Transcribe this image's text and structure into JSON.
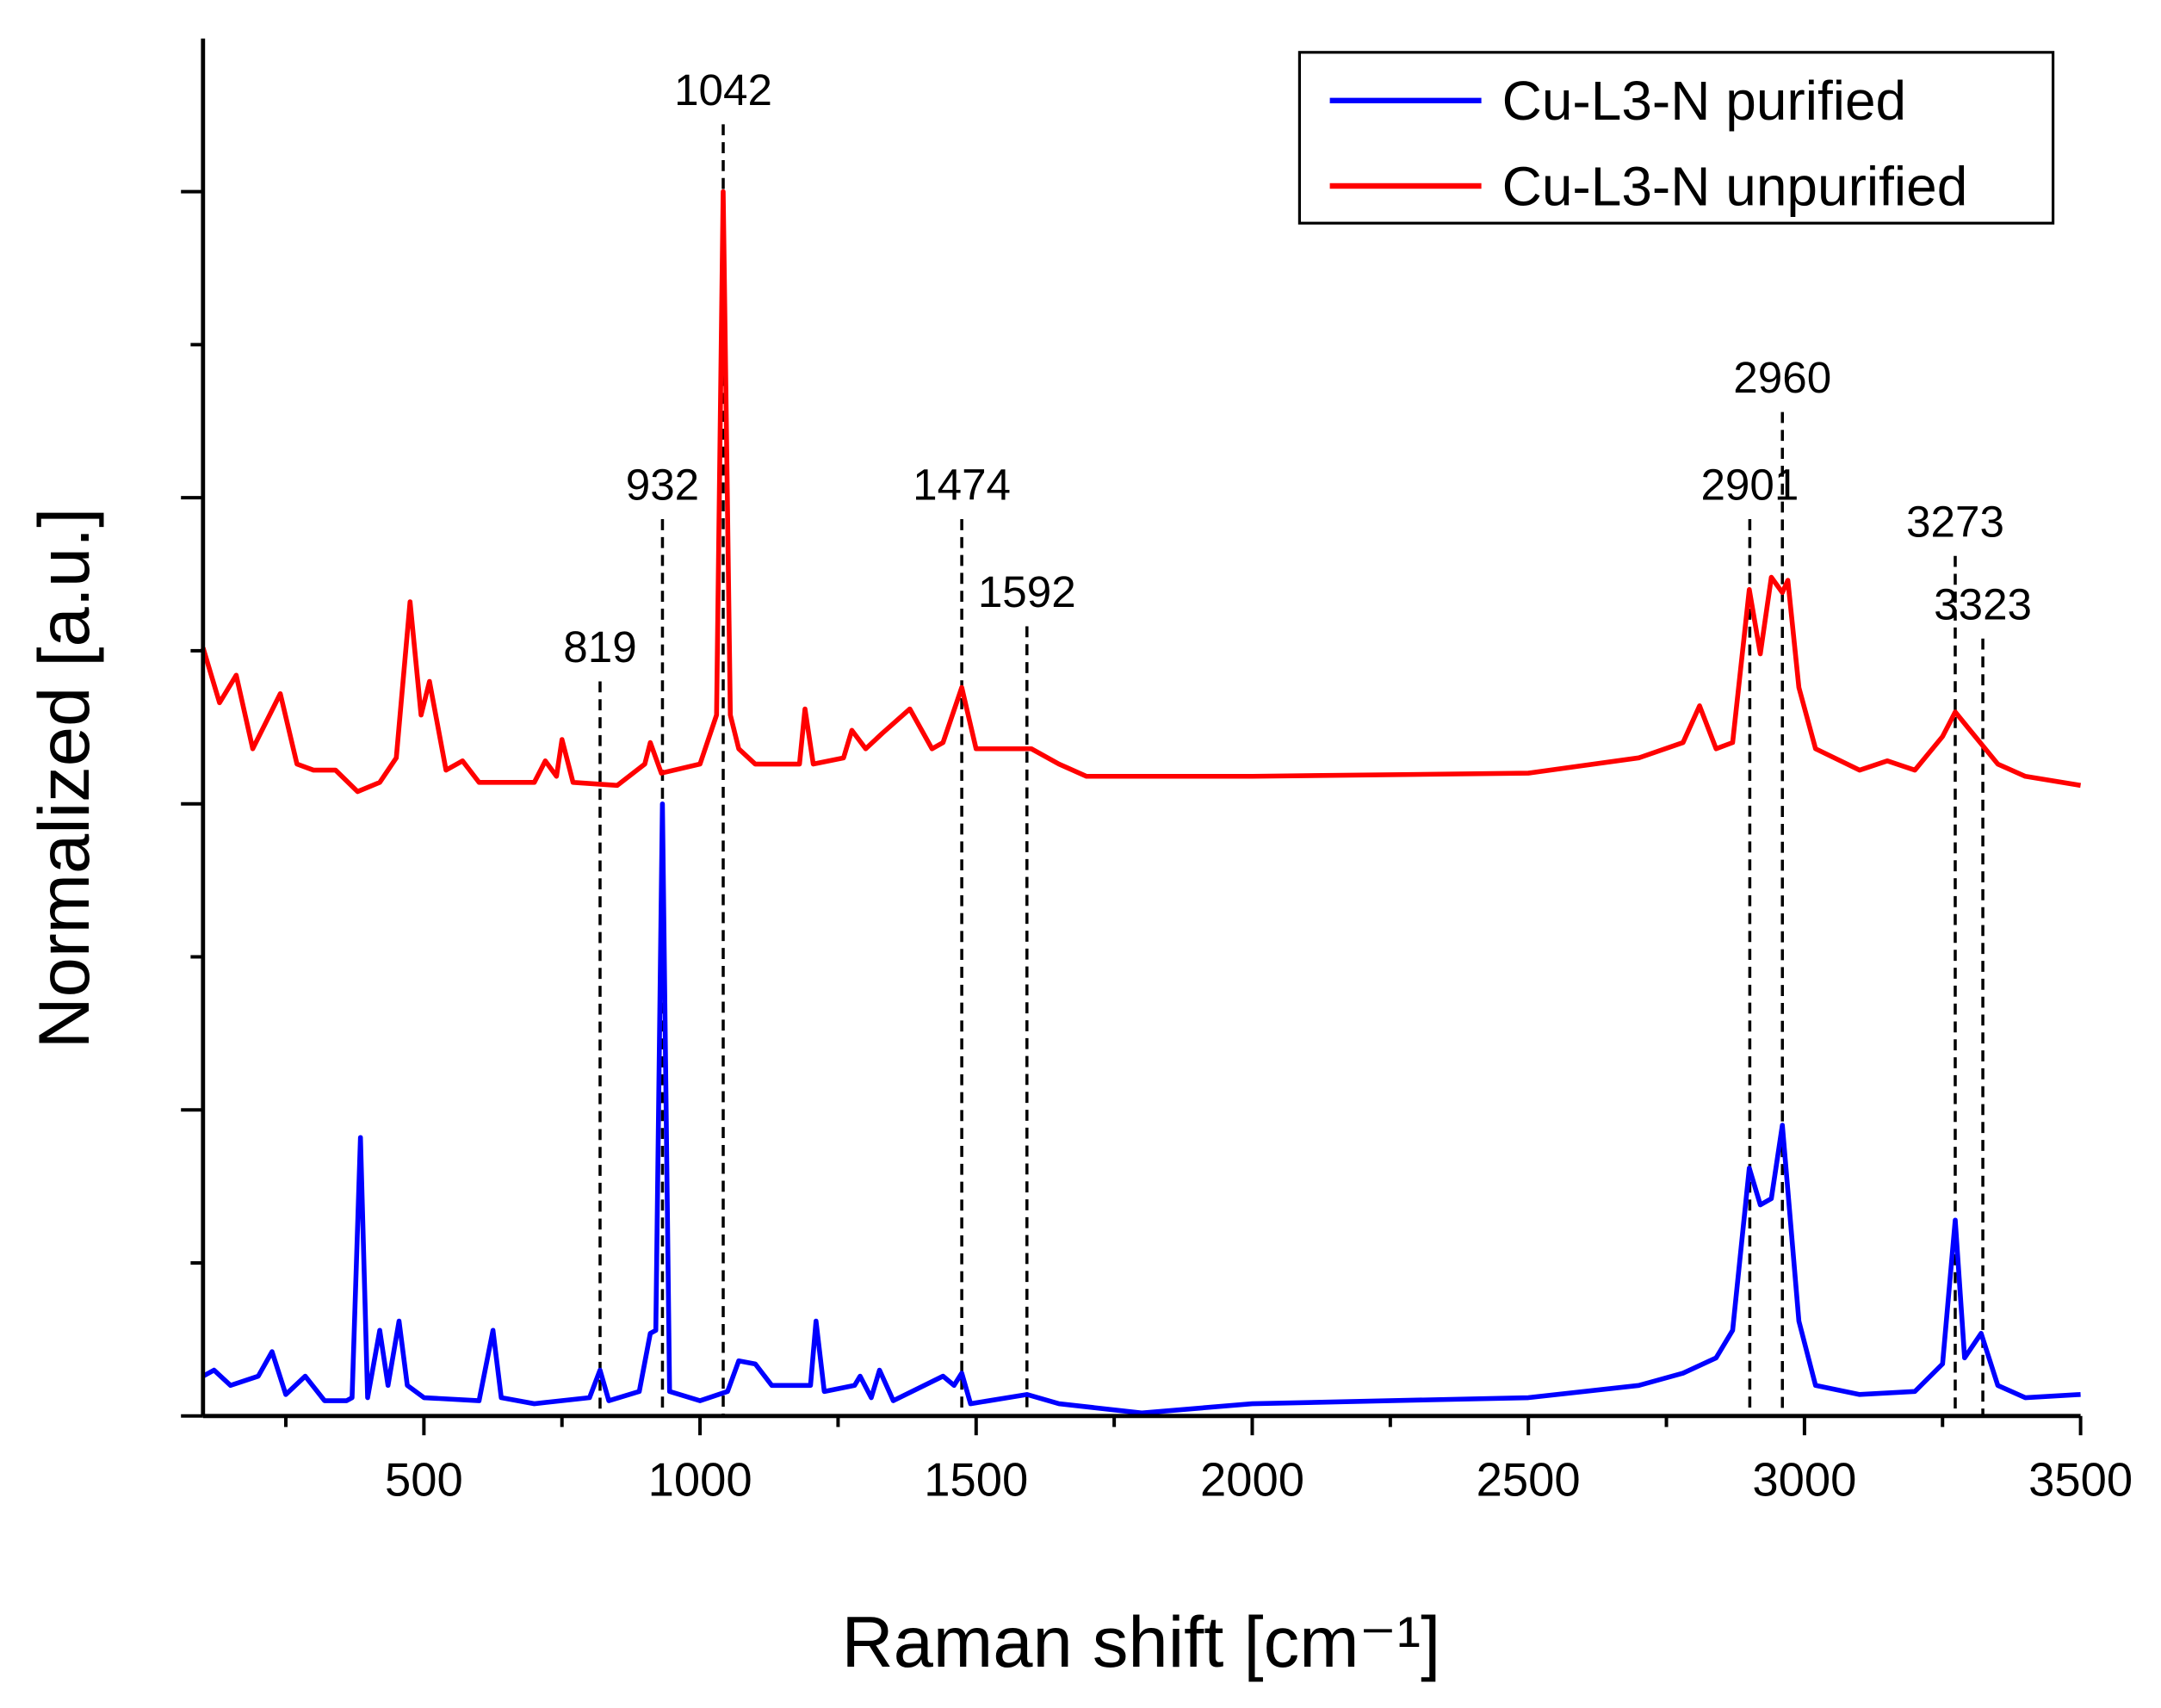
{
  "chart_data": {
    "type": "line",
    "xlabel": "Raman shift [cm⁻¹]",
    "ylabel": "Normalized [a.u.]",
    "xlim": [
      100,
      3500
    ],
    "ylim": [
      0,
      4.5
    ],
    "xticks": [
      500,
      1000,
      1500,
      2000,
      2500,
      3000,
      3500
    ],
    "xticks_minor": [
      250,
      750,
      1250,
      1750,
      2250,
      2750,
      3250
    ],
    "yticks": [
      0,
      0.5,
      1,
      1.5,
      2,
      2.5,
      3,
      3.5,
      4
    ],
    "legend": "upper right",
    "series": [
      {
        "name": "Cu-L3-N purified",
        "color": "#0000ff",
        "x": [
          100,
          120,
          150,
          200,
          225,
          250,
          285,
          320,
          360,
          370,
          385,
          398,
          420,
          435,
          455,
          470,
          500,
          600,
          625,
          640,
          700,
          800,
          819,
          835,
          890,
          910,
          920,
          932,
          945,
          1000,
          1050,
          1070,
          1100,
          1130,
          1200,
          1210,
          1225,
          1280,
          1290,
          1310,
          1325,
          1350,
          1440,
          1460,
          1474,
          1490,
          1592,
          1650,
          1800,
          2000,
          2500,
          2700,
          2780,
          2840,
          2870,
          2900,
          2920,
          2940,
          2960,
          2990,
          3020,
          3100,
          3200,
          3250,
          3273,
          3290,
          3320,
          3350,
          3400,
          3500
        ],
        "values": [
          0.13,
          0.15,
          0.1,
          0.13,
          0.21,
          0.07,
          0.13,
          0.05,
          0.05,
          0.06,
          0.91,
          0.06,
          0.28,
          0.1,
          0.31,
          0.1,
          0.06,
          0.05,
          0.28,
          0.06,
          0.04,
          0.06,
          0.15,
          0.05,
          0.08,
          0.27,
          0.28,
          2.0,
          0.08,
          0.05,
          0.08,
          0.18,
          0.17,
          0.1,
          0.1,
          0.31,
          0.08,
          0.1,
          0.13,
          0.06,
          0.15,
          0.05,
          0.13,
          0.1,
          0.14,
          0.04,
          0.07,
          0.04,
          0.01,
          0.04,
          0.06,
          0.1,
          0.14,
          0.19,
          0.28,
          0.81,
          0.69,
          0.71,
          0.95,
          0.31,
          0.1,
          0.07,
          0.08,
          0.17,
          0.64,
          0.19,
          0.27,
          0.1,
          0.06,
          0.07
        ]
      },
      {
        "name": "Cu-L3-N unpurified",
        "color": "#ff0000",
        "x": [
          100,
          130,
          160,
          190,
          240,
          270,
          300,
          340,
          380,
          420,
          450,
          475,
          495,
          510,
          540,
          570,
          600,
          700,
          720,
          740,
          750,
          770,
          850,
          900,
          910,
          930,
          1000,
          1030,
          1042,
          1055,
          1070,
          1100,
          1180,
          1190,
          1205,
          1260,
          1275,
          1300,
          1330,
          1380,
          1420,
          1440,
          1474,
          1500,
          1600,
          1650,
          1700,
          2000,
          2500,
          2700,
          2780,
          2810,
          2840,
          2870,
          2900,
          2920,
          2940,
          2960,
          2970,
          2990,
          3020,
          3100,
          3150,
          3200,
          3250,
          3273,
          3300,
          3350,
          3400,
          3500
        ],
        "values": [
          2.51,
          2.33,
          2.42,
          2.18,
          2.36,
          2.13,
          2.11,
          2.11,
          2.04,
          2.07,
          2.15,
          2.66,
          2.29,
          2.4,
          2.11,
          2.14,
          2.07,
          2.07,
          2.14,
          2.09,
          2.21,
          2.07,
          2.06,
          2.13,
          2.2,
          2.1,
          2.13,
          2.29,
          4.0,
          2.29,
          2.18,
          2.13,
          2.13,
          2.31,
          2.13,
          2.15,
          2.24,
          2.18,
          2.23,
          2.31,
          2.18,
          2.2,
          2.38,
          2.18,
          2.18,
          2.13,
          2.09,
          2.09,
          2.1,
          2.15,
          2.2,
          2.32,
          2.18,
          2.2,
          2.7,
          2.49,
          2.74,
          2.69,
          2.73,
          2.38,
          2.18,
          2.11,
          2.14,
          2.11,
          2.22,
          2.3,
          2.24,
          2.13,
          2.09,
          2.06
        ]
      }
    ],
    "annotations": [
      {
        "x": 819,
        "y": 2.4
      },
      {
        "x": 932,
        "y": 2.93
      },
      {
        "x": 1042,
        "y": 4.22
      },
      {
        "x": 1474,
        "y": 2.93
      },
      {
        "x": 1592,
        "y": 2.58
      },
      {
        "x": 2901,
        "y": 2.93
      },
      {
        "x": 2960,
        "y": 3.28
      },
      {
        "x": 3273,
        "y": 2.81
      },
      {
        "x": 3323,
        "y": 2.54
      }
    ]
  }
}
